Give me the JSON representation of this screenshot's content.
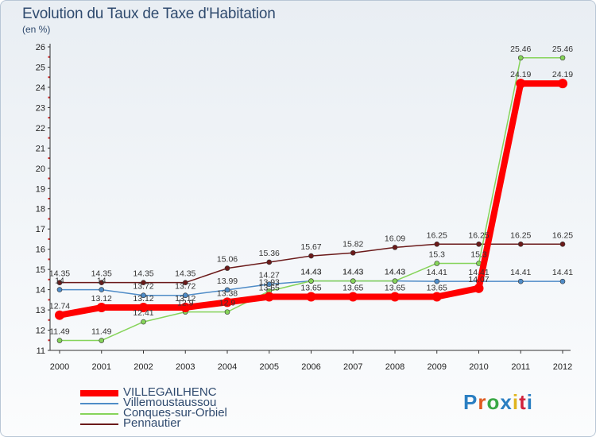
{
  "title": "Evolution du Taux de Taxe d'Habitation",
  "subtitle": "(en %)",
  "logo": {
    "text": "Proxiti",
    "colors": [
      "#2b7fc2",
      "#e05a1e",
      "#39a845",
      "#2b7fc2",
      "#e0b41e",
      "#d2233c",
      "#2b7fc2"
    ]
  },
  "chart_data": {
    "type": "line",
    "x": [
      "2000",
      "2001",
      "2002",
      "2003",
      "2004",
      "2005",
      "2006",
      "2007",
      "2008",
      "2009",
      "2010",
      "2011",
      "2012"
    ],
    "ylim": [
      11,
      26
    ],
    "yticks": [
      "11",
      "12",
      "13",
      "14",
      "15",
      "16",
      "17",
      "18",
      "19",
      "20",
      "21",
      "22",
      "23",
      "24",
      "25",
      "26"
    ],
    "grid": false,
    "legend_position": "bottom-left",
    "series": [
      {
        "name": "Pennautier",
        "color": "#6b1a1a",
        "values": [
          14.35,
          14.35,
          14.35,
          14.35,
          15.06,
          15.36,
          15.67,
          15.82,
          16.09,
          16.25,
          16.25,
          16.25,
          16.25
        ],
        "labels": [
          "14.35",
          "14.35",
          "14.35",
          "14.35",
          "15.06",
          "15.36",
          "15.67",
          "15.82",
          "16.09",
          "16.25",
          "16.25",
          "16.25",
          "16.25"
        ]
      },
      {
        "name": "Villemoustaussou",
        "color": "#4f8cc7",
        "values": [
          14,
          14,
          13.72,
          13.72,
          13.99,
          14.27,
          14.43,
          14.43,
          14.43,
          14.41,
          14.41,
          14.41,
          14.41
        ],
        "labels": [
          "14",
          "14",
          "13.72",
          "13.72",
          "13.99",
          "14.27",
          "14.43",
          "14.43",
          "14.43",
          "14.41",
          "14.41",
          "14.41",
          "14.41"
        ]
      },
      {
        "name": "Conques-sur-Orbiel",
        "color": "#86d45a",
        "values": [
          11.49,
          11.49,
          12.41,
          12.9,
          12.9,
          13.93,
          14.43,
          14.43,
          14.43,
          15.3,
          15.3,
          25.46,
          25.46
        ],
        "labels": [
          "11.49",
          "11.49",
          "12.41",
          "12.9",
          "12.9",
          "13.93",
          "14.43",
          "14.43",
          "14.43",
          "15.3",
          "15.3",
          "25.46",
          "25.46"
        ]
      },
      {
        "name": "VILLEGAILHENC",
        "color": "#ff0000",
        "values": [
          12.74,
          13.12,
          13.12,
          13.12,
          13.38,
          13.65,
          13.65,
          13.65,
          13.65,
          13.65,
          14.07,
          24.19,
          24.19
        ],
        "labels": [
          "12.74",
          "13.12",
          "13.12",
          "13.12",
          "13.38",
          "13.65",
          "13.65",
          "13.65",
          "13.65",
          "13.65",
          "14.07",
          "24.19",
          "24.19"
        ]
      }
    ],
    "legend": [
      "VILLEGAILHENC",
      "Villemoustaussou",
      "Conques-sur-Orbiel",
      "Pennautier"
    ]
  }
}
